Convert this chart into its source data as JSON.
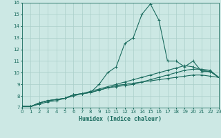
{
  "xlabel": "Humidex (Indice chaleur)",
  "ylabel": "",
  "bg_color": "#cce8e4",
  "line_color": "#1a6b5e",
  "grid_color": "#aacfca",
  "xmin": 0,
  "xmax": 23,
  "ymin": 7,
  "ymax": 16,
  "x_values": [
    0,
    1,
    2,
    3,
    4,
    5,
    6,
    7,
    8,
    9,
    10,
    11,
    12,
    13,
    14,
    15,
    16,
    17,
    18,
    19,
    20,
    21,
    22,
    23
  ],
  "line1": [
    7.1,
    7.1,
    7.4,
    7.6,
    7.7,
    7.8,
    8.1,
    8.2,
    8.3,
    9.0,
    10.0,
    10.5,
    12.5,
    13.0,
    15.0,
    15.9,
    14.5,
    11.0,
    11.0,
    10.5,
    11.0,
    10.1,
    10.1,
    9.6
  ],
  "line2": [
    7.1,
    7.1,
    7.4,
    7.6,
    7.7,
    7.8,
    8.1,
    8.2,
    8.3,
    8.5,
    8.7,
    8.8,
    8.9,
    9.0,
    9.2,
    9.4,
    9.6,
    9.8,
    10.0,
    10.2,
    10.3,
    10.3,
    10.2,
    9.6
  ],
  "line3": [
    7.1,
    7.1,
    7.4,
    7.6,
    7.7,
    7.8,
    8.1,
    8.2,
    8.4,
    8.6,
    8.8,
    9.0,
    9.2,
    9.4,
    9.6,
    9.8,
    10.0,
    10.2,
    10.4,
    10.6,
    10.5,
    10.2,
    10.1,
    9.6
  ],
  "line4": [
    7.1,
    7.1,
    7.3,
    7.5,
    7.6,
    7.8,
    8.0,
    8.2,
    8.3,
    8.5,
    8.7,
    8.9,
    9.0,
    9.1,
    9.2,
    9.3,
    9.4,
    9.5,
    9.6,
    9.7,
    9.8,
    9.8,
    9.7,
    9.6
  ]
}
